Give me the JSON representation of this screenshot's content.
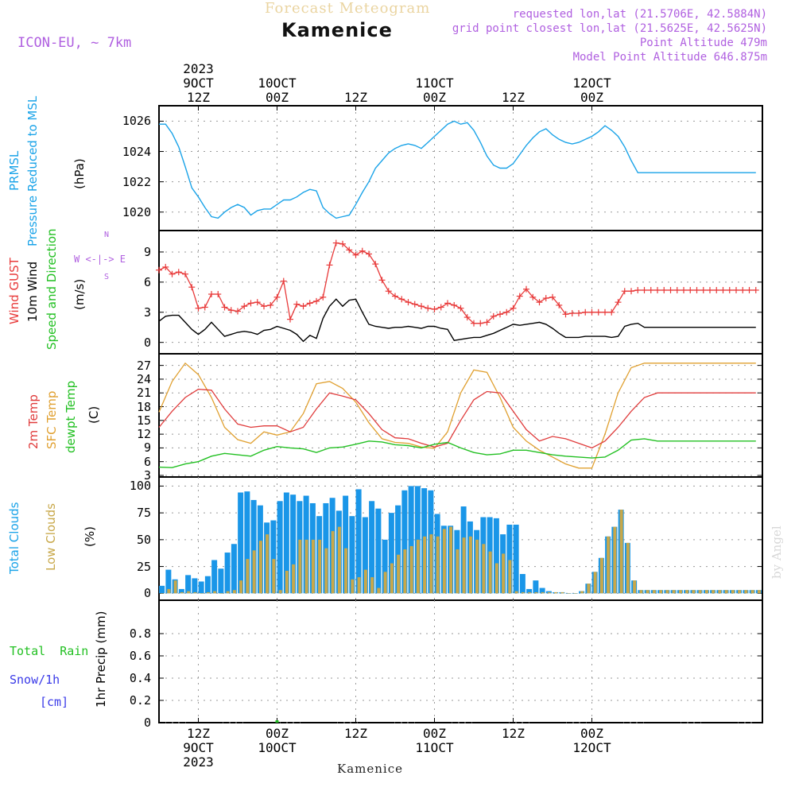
{
  "header": {
    "title": "Kamenice",
    "subtitle": "Forecast Meteogram",
    "model": "ICON-EU, ~ 7km",
    "requested": "requested lon,lat (21.5706E, 42.5884N)",
    "gridpoint": "grid point closest lon,lat (21.5625E, 42.5625N)",
    "point_alt": "Point Altitude 479m",
    "model_alt": "Model Point Altitude 646.875m",
    "credit": "by Angel",
    "footer": "Kamenice"
  },
  "time_axis": {
    "range_hours": [
      0,
      92
    ],
    "ticks": [
      {
        "h": 6,
        "top": [
          "2023",
          "9OCT",
          "12Z"
        ],
        "bottom": [
          "12Z",
          "9OCT",
          "2023"
        ]
      },
      {
        "h": 18,
        "top": [
          "10OCT",
          "00Z"
        ],
        "bottom": [
          "00Z",
          "10OCT"
        ]
      },
      {
        "h": 30,
        "top": [
          "12Z"
        ],
        "bottom": [
          "12Z"
        ]
      },
      {
        "h": 42,
        "top": [
          "11OCT",
          "00Z"
        ],
        "bottom": [
          "00Z",
          "11OCT"
        ]
      },
      {
        "h": 54,
        "top": [
          "12Z"
        ],
        "bottom": [
          "12Z"
        ]
      },
      {
        "h": 66,
        "top": [
          "12OCT",
          "00Z"
        ],
        "bottom": [
          "00Z",
          "12OCT"
        ]
      }
    ]
  },
  "panels": {
    "pressure": {
      "labels": [
        "Pressure Reduced to MSL",
        "PRMSL"
      ],
      "unit": "(hPa)",
      "ticks": [
        1020,
        1022,
        1024,
        1026
      ],
      "ylim": [
        1019.2,
        1026.6
      ]
    },
    "wind": {
      "labels": [
        "Speed and Direction",
        "10m Wind",
        "Wind GUST"
      ],
      "unit": "(m/s)",
      "ticks": [
        0,
        3,
        6,
        9
      ],
      "ylim": [
        -0.5,
        10.5
      ],
      "compass": [
        "N",
        "W <-|-> E",
        "S"
      ]
    },
    "temp": {
      "labels": [
        "dewpt Temp",
        "SFC Temp",
        "2m Temp"
      ],
      "unit": "(C)",
      "ticks": [
        3,
        6,
        9,
        12,
        15,
        18,
        21,
        24,
        27
      ],
      "ylim": [
        3,
        28.5
      ]
    },
    "clouds": {
      "labels": [
        "Low Clouds",
        "Total Clouds"
      ],
      "unit": "(%)",
      "ticks": [
        0,
        25,
        50,
        75,
        100
      ],
      "ylim": [
        -2,
        104
      ]
    },
    "precip": {
      "labels": [
        "1hr Precip (mm)"
      ],
      "legend": [
        "Total  Rain",
        "Snow/1h",
        "[cm]"
      ],
      "ticks": [
        0,
        0.2,
        0.4,
        0.6,
        0.8
      ],
      "tick_labels": [
        "0",
        "0.2",
        "0.4",
        "0.6",
        "0.8"
      ],
      "ylim": [
        0,
        1.0
      ]
    }
  },
  "colors": {
    "pressure": "#1aa3e8",
    "gust": "#e83a3a",
    "wind": "#000000",
    "temp2m": "#e03c3c",
    "sfc": "#e0a030",
    "dew": "#22c022",
    "total": "#1a96e8",
    "low": "#c8a84a",
    "violet": "#b060e0",
    "grid": "#9a9a9a",
    "rain": "#22c022"
  },
  "chart_data": {
    "type": "meteogram",
    "x_unit": "hours from 9OCT 00Z",
    "pressure": {
      "x": [
        0,
        1,
        2,
        3,
        4,
        5,
        6,
        7,
        8,
        9,
        10,
        11,
        12,
        13,
        14,
        15,
        16,
        17,
        18,
        19,
        20,
        21,
        22,
        23,
        24,
        25,
        26,
        27,
        28,
        29,
        30,
        31,
        32,
        33,
        34,
        35,
        36,
        37,
        38,
        39,
        40,
        41,
        42,
        43,
        44,
        45,
        46,
        47,
        48,
        49,
        50,
        51,
        52,
        53,
        54,
        55,
        56,
        57,
        58,
        59,
        60,
        61,
        62,
        63,
        64,
        65,
        66,
        67,
        68,
        69,
        70,
        71,
        72,
        73,
        74,
        75,
        76,
        77,
        78,
        79,
        80,
        81,
        82,
        83,
        84,
        85,
        86,
        87,
        88,
        89,
        90,
        91
      ],
      "y": [
        1025.8,
        1025.8,
        1025.2,
        1024.3,
        1023.0,
        1021.6,
        1021.0,
        1020.3,
        1019.7,
        1019.6,
        1020.0,
        1020.3,
        1020.5,
        1020.3,
        1019.8,
        1020.1,
        1020.2,
        1020.2,
        1020.5,
        1020.8,
        1020.8,
        1021.0,
        1021.3,
        1021.5,
        1021.4,
        1020.3,
        1019.9,
        1019.6,
        1019.7,
        1019.8,
        1020.5,
        1021.3,
        1022.0,
        1022.9,
        1023.4,
        1023.9,
        1024.2,
        1024.4,
        1024.5,
        1024.4,
        1024.2,
        1024.6,
        1025.0,
        1025.4,
        1025.8,
        1026.0,
        1025.8,
        1025.9,
        1025.4,
        1024.6,
        1023.7,
        1023.1,
        1022.9,
        1022.9,
        1023.2,
        1023.8,
        1024.4,
        1024.9,
        1025.3,
        1025.5,
        1025.1,
        1024.8,
        1024.6,
        1024.5,
        1024.6,
        1024.8,
        1025.0,
        1025.3,
        1025.7,
        1025.4,
        1025.0,
        1024.3,
        1023.4,
        1022.6,
        1022.6,
        1022.6,
        1022.6,
        1022.6,
        1022.6,
        1022.6,
        1022.6,
        1022.6,
        1022.6,
        1022.6,
        1022.6,
        1022.6,
        1022.6,
        1022.6,
        1022.6,
        1022.6,
        1022.6,
        1022.6
      ]
    },
    "gust": {
      "x": [
        0,
        1,
        2,
        3,
        4,
        5,
        6,
        7,
        8,
        9,
        10,
        11,
        12,
        13,
        14,
        15,
        16,
        17,
        18,
        19,
        20,
        21,
        22,
        23,
        24,
        25,
        26,
        27,
        28,
        29,
        30,
        31,
        32,
        33,
        34,
        35,
        36,
        37,
        38,
        39,
        40,
        41,
        42,
        43,
        44,
        45,
        46,
        47,
        48,
        49,
        50,
        51,
        52,
        53,
        54,
        55,
        56,
        57,
        58,
        59,
        60,
        61,
        62,
        63,
        64,
        65,
        66,
        67,
        68,
        69,
        70,
        71,
        72,
        73,
        74,
        75,
        76,
        77,
        78,
        79,
        80,
        81,
        82,
        83,
        84,
        85,
        86,
        87,
        88,
        89,
        90,
        91
      ],
      "y": [
        7.2,
        7.5,
        6.8,
        7.0,
        6.8,
        5.5,
        3.4,
        3.5,
        4.8,
        4.8,
        3.5,
        3.2,
        3.1,
        3.6,
        3.9,
        4.0,
        3.6,
        3.7,
        4.5,
        6.1,
        2.3,
        3.8,
        3.6,
        3.9,
        4.1,
        4.5,
        7.7,
        9.9,
        9.8,
        9.2,
        8.7,
        9.1,
        8.8,
        7.8,
        6.2,
        5.1,
        4.6,
        4.3,
        4.0,
        3.8,
        3.6,
        3.4,
        3.3,
        3.5,
        3.9,
        3.7,
        3.4,
        2.5,
        1.9,
        1.9,
        2.0,
        2.6,
        2.8,
        3.0,
        3.4,
        4.6,
        5.3,
        4.5,
        4.0,
        4.4,
        4.5,
        3.7,
        2.8,
        2.9,
        2.9,
        3.0,
        3.0,
        3.0,
        3.0,
        3.0,
        4.0,
        5.1,
        5.1,
        5.2,
        5.2,
        5.2,
        5.2,
        5.2,
        5.2,
        5.2,
        5.2,
        5.2,
        5.2,
        5.2,
        5.2,
        5.2,
        5.2,
        5.2,
        5.2,
        5.2,
        5.2,
        5.2
      ]
    },
    "wind10m": {
      "x": [
        0,
        1,
        2,
        3,
        4,
        5,
        6,
        7,
        8,
        9,
        10,
        11,
        12,
        13,
        14,
        15,
        16,
        17,
        18,
        19,
        20,
        21,
        22,
        23,
        24,
        25,
        26,
        27,
        28,
        29,
        30,
        31,
        32,
        33,
        34,
        35,
        36,
        37,
        38,
        39,
        40,
        41,
        42,
        43,
        44,
        45,
        46,
        47,
        48,
        49,
        50,
        51,
        52,
        53,
        54,
        55,
        56,
        57,
        58,
        59,
        60,
        61,
        62,
        63,
        64,
        65,
        66,
        67,
        68,
        69,
        70,
        71,
        72,
        73,
        74,
        75,
        76,
        77,
        78,
        79,
        80,
        81,
        82,
        83,
        84,
        85,
        86,
        87,
        88,
        89,
        90,
        91
      ],
      "y": [
        2.1,
        2.6,
        2.7,
        2.7,
        2.0,
        1.3,
        0.8,
        1.3,
        2.0,
        1.3,
        0.6,
        0.8,
        1.0,
        1.1,
        1.0,
        0.8,
        1.2,
        1.3,
        1.6,
        1.4,
        1.2,
        0.8,
        0.1,
        0.7,
        0.4,
        2.4,
        3.6,
        4.3,
        3.6,
        4.2,
        4.3,
        3.0,
        1.8,
        1.6,
        1.5,
        1.4,
        1.5,
        1.5,
        1.6,
        1.5,
        1.4,
        1.6,
        1.6,
        1.4,
        1.3,
        0.2,
        0.3,
        0.4,
        0.5,
        0.5,
        0.7,
        0.9,
        1.2,
        1.5,
        1.8,
        1.7,
        1.8,
        1.9,
        2.0,
        1.8,
        1.4,
        0.9,
        0.5,
        0.5,
        0.5,
        0.6,
        0.6,
        0.6,
        0.6,
        0.5,
        0.6,
        1.6,
        1.8,
        1.9,
        1.5,
        1.5,
        1.5,
        1.5,
        1.5,
        1.5,
        1.5,
        1.5,
        1.5,
        1.5,
        1.5,
        1.5,
        1.5,
        1.5,
        1.5,
        1.5,
        1.5,
        1.5
      ]
    },
    "temp2m": {
      "x": [
        0,
        2,
        4,
        6,
        8,
        10,
        12,
        14,
        16,
        18,
        20,
        22,
        24,
        26,
        28,
        30,
        32,
        34,
        36,
        38,
        40,
        42,
        44,
        46,
        48,
        50,
        52,
        54,
        56,
        58,
        60,
        62,
        64,
        66,
        68,
        70,
        72,
        74,
        76,
        78,
        80,
        82,
        84,
        86,
        88,
        90,
        91
      ],
      "y": [
        13.5,
        17.0,
        20.0,
        21.8,
        21.6,
        17.5,
        14.2,
        13.5,
        13.8,
        13.8,
        12.5,
        13.5,
        17.5,
        21.0,
        20.3,
        19.5,
        16.5,
        13.0,
        11.2,
        11.0,
        10.0,
        9.2,
        10.0,
        15.0,
        19.5,
        21.3,
        21.0,
        17.0,
        13.0,
        10.5,
        11.5,
        11.0,
        10.0,
        9.0,
        10.5,
        13.5,
        17.0,
        20.0,
        21.0,
        21.0,
        21.0,
        21.0,
        21.0,
        21.0,
        21.0,
        21.0,
        21.0
      ]
    },
    "sfc_temp": {
      "x": [
        0,
        2,
        4,
        6,
        8,
        10,
        12,
        14,
        16,
        18,
        20,
        22,
        24,
        26,
        28,
        30,
        32,
        34,
        36,
        38,
        40,
        42,
        44,
        46,
        48,
        50,
        52,
        54,
        56,
        58,
        60,
        62,
        64,
        66,
        68,
        70,
        72,
        74,
        76,
        78,
        80,
        82,
        84,
        86,
        88,
        90,
        91
      ],
      "y": [
        16.8,
        23.5,
        27.5,
        25.0,
        20.0,
        13.5,
        10.8,
        10.0,
        12.5,
        11.8,
        12.5,
        16.5,
        23.0,
        23.5,
        22.0,
        19.0,
        14.5,
        11.0,
        10.2,
        10.0,
        9.2,
        8.9,
        12.5,
        21.0,
        26.0,
        25.5,
        20.0,
        13.5,
        10.5,
        8.5,
        7.0,
        5.5,
        4.6,
        4.6,
        12.0,
        21.0,
        26.5,
        27.5,
        27.5,
        27.5,
        27.5,
        27.5,
        27.5,
        27.5,
        27.5,
        27.5,
        27.5
      ]
    },
    "dewpt": {
      "x": [
        0,
        2,
        4,
        6,
        8,
        10,
        12,
        14,
        16,
        18,
        20,
        22,
        24,
        26,
        28,
        30,
        32,
        34,
        36,
        38,
        40,
        42,
        44,
        46,
        48,
        50,
        52,
        54,
        56,
        58,
        60,
        62,
        64,
        66,
        68,
        70,
        72,
        74,
        76,
        78,
        80,
        82,
        84,
        86,
        88,
        90,
        91
      ],
      "y": [
        4.8,
        4.7,
        5.5,
        6.0,
        7.2,
        7.8,
        7.5,
        7.2,
        8.5,
        9.3,
        9.0,
        8.8,
        8.0,
        9.0,
        9.2,
        9.8,
        10.5,
        10.3,
        9.7,
        9.5,
        9.0,
        9.8,
        10.2,
        9.0,
        8.0,
        7.5,
        7.7,
        8.5,
        8.5,
        8.0,
        7.5,
        7.2,
        7.0,
        6.8,
        7.0,
        8.5,
        10.7,
        11.0,
        10.5,
        10.5,
        10.5,
        10.5,
        10.5,
        10.5,
        10.5,
        10.5,
        10.5
      ]
    },
    "total_clouds": {
      "x": [
        0,
        1,
        2,
        3,
        4,
        5,
        6,
        7,
        8,
        9,
        10,
        11,
        12,
        13,
        14,
        15,
        16,
        17,
        18,
        19,
        20,
        21,
        22,
        23,
        24,
        25,
        26,
        27,
        28,
        29,
        30,
        31,
        32,
        33,
        34,
        35,
        36,
        37,
        38,
        39,
        40,
        41,
        42,
        43,
        44,
        45,
        46,
        47,
        48,
        49,
        50,
        51,
        52,
        53,
        54,
        55,
        56,
        57,
        58,
        59,
        60,
        61,
        62,
        63,
        64,
        65,
        66,
        67,
        68,
        69,
        70,
        71,
        72,
        73,
        74,
        75,
        76,
        77,
        78,
        79,
        80,
        81,
        82,
        83,
        84,
        85,
        86,
        87,
        88,
        89,
        90,
        91
      ],
      "y": [
        7,
        22,
        13,
        4,
        17,
        14,
        11,
        16,
        31,
        23,
        38,
        46,
        94,
        95,
        87,
        82,
        66,
        68,
        86,
        94,
        92,
        86,
        91,
        84,
        72,
        84,
        89,
        77,
        91,
        72,
        97,
        71,
        86,
        79,
        50,
        75,
        82,
        96,
        100,
        100,
        98,
        96,
        74,
        63,
        63,
        59,
        81,
        67,
        59,
        71,
        71,
        70,
        55,
        64,
        64,
        18,
        4,
        12,
        5,
        2,
        1,
        1,
        0,
        0,
        2,
        9,
        20,
        33,
        53,
        62,
        78,
        47,
        12,
        3,
        3,
        3,
        3,
        3,
        3,
        3,
        3,
        3,
        3,
        3,
        3,
        3,
        3,
        3,
        3,
        3,
        3,
        3
      ]
    },
    "low_clouds": {
      "x": [
        0,
        1,
        2,
        3,
        4,
        5,
        6,
        7,
        8,
        9,
        10,
        11,
        12,
        13,
        14,
        15,
        16,
        17,
        18,
        19,
        20,
        21,
        22,
        23,
        24,
        25,
        26,
        27,
        28,
        29,
        30,
        31,
        32,
        33,
        34,
        35,
        36,
        37,
        38,
        39,
        40,
        41,
        42,
        43,
        44,
        45,
        46,
        47,
        48,
        49,
        50,
        51,
        52,
        53,
        54,
        55,
        56,
        57,
        58,
        59,
        60,
        61,
        62,
        63,
        64,
        65,
        66,
        67,
        68,
        69,
        70,
        71,
        72,
        73,
        74,
        75,
        76,
        77,
        78,
        79,
        80,
        81,
        82,
        83,
        84,
        85,
        86,
        87,
        88,
        89,
        90,
        91
      ],
      "y": [
        0,
        4,
        12,
        1,
        2,
        1,
        0,
        1,
        2,
        0,
        2,
        3,
        12,
        32,
        40,
        49,
        55,
        32,
        3,
        21,
        27,
        50,
        50,
        50,
        50,
        42,
        58,
        62,
        42,
        13,
        15,
        22,
        15,
        5,
        20,
        28,
        36,
        41,
        44,
        50,
        53,
        55,
        53,
        60,
        62,
        41,
        52,
        53,
        50,
        46,
        39,
        28,
        37,
        31,
        2,
        1,
        1,
        1,
        1,
        1,
        1,
        1,
        0,
        0,
        2,
        9,
        20,
        33,
        53,
        62,
        78,
        47,
        12,
        3,
        3,
        3,
        3,
        3,
        3,
        3,
        3,
        3,
        3,
        3,
        3,
        3,
        3,
        3,
        3,
        3,
        3,
        3
      ]
    },
    "precip": {
      "x": [
        18
      ],
      "y": [
        0.005
      ]
    }
  }
}
